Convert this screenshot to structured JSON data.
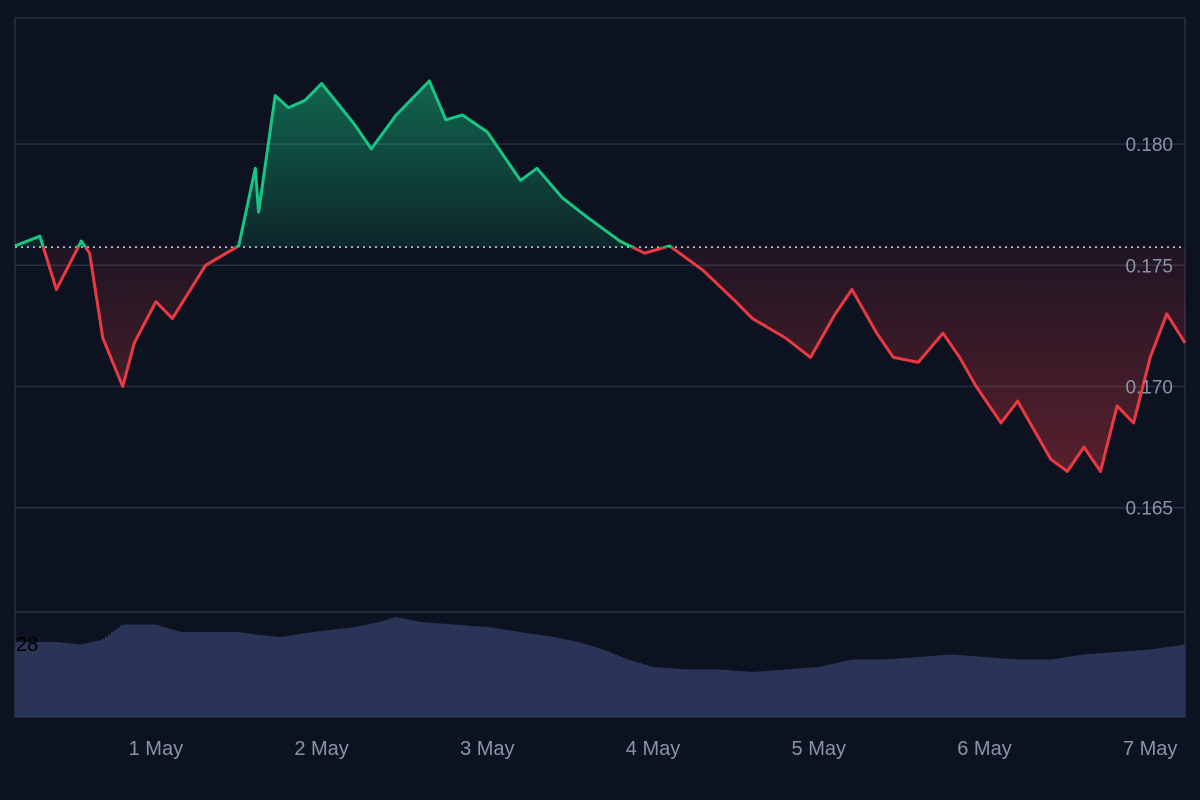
{
  "chart_data": {
    "type": "area",
    "title": "",
    "xlabel": "",
    "ylabel": "",
    "x_ticks": [
      "1 May",
      "2 May",
      "3 May",
      "4 May",
      "5 May",
      "6 May",
      "7 May"
    ],
    "x_range_days": [
      30.15,
      37.21
    ],
    "y_ticks": [
      "0.180",
      "0.175",
      "0.170",
      "0.165"
    ],
    "ylim": [
      0.1607,
      0.1852
    ],
    "baseline": 0.17575,
    "grid": true,
    "legend": "none",
    "colors": {
      "above": "#16c784",
      "below": "#ea3943",
      "baseline": "#cfd4de",
      "volume": "#2a3457",
      "grid": "#263043",
      "background": "#0c1220"
    },
    "price_series": {
      "day": [
        30.15,
        30.3,
        30.4,
        30.55,
        30.6,
        30.68,
        30.8,
        30.87,
        31.0,
        31.1,
        31.3,
        31.5,
        31.6,
        31.62,
        31.72,
        31.8,
        31.9,
        32.0,
        32.2,
        32.3,
        32.45,
        32.65,
        32.75,
        32.85,
        33.0,
        33.2,
        33.3,
        33.45,
        33.6,
        33.7,
        33.8,
        33.95,
        34.1,
        34.3,
        34.5,
        34.6,
        34.8,
        34.95,
        35.1,
        35.2,
        35.35,
        35.45,
        35.6,
        35.75,
        35.85,
        35.95,
        36.1,
        36.2,
        36.4,
        36.5,
        36.6,
        36.7,
        36.8,
        36.9,
        37.0,
        37.1,
        37.21
      ],
      "price": [
        0.1758,
        0.1762,
        0.174,
        0.176,
        0.1755,
        0.172,
        0.17,
        0.1718,
        0.1735,
        0.1728,
        0.175,
        0.1758,
        0.179,
        0.1772,
        0.182,
        0.1815,
        0.1818,
        0.1825,
        0.1808,
        0.1798,
        0.1812,
        0.1826,
        0.181,
        0.1812,
        0.1805,
        0.1785,
        0.179,
        0.1778,
        0.177,
        0.1765,
        0.176,
        0.1755,
        0.1758,
        0.1748,
        0.1735,
        0.1728,
        0.172,
        0.1712,
        0.173,
        0.174,
        0.1722,
        0.1712,
        0.171,
        0.1722,
        0.1712,
        0.17,
        0.1685,
        0.1694,
        0.167,
        0.1665,
        0.1675,
        0.1665,
        0.1692,
        0.1685,
        0.1712,
        0.173,
        0.1718
      ]
    },
    "volume_series": {
      "day": [
        30.15,
        30.4,
        30.55,
        30.68,
        30.8,
        31.0,
        31.15,
        31.3,
        31.5,
        31.6,
        31.75,
        31.95,
        32.2,
        32.35,
        32.45,
        32.6,
        32.8,
        33.0,
        33.2,
        33.4,
        33.55,
        33.7,
        33.85,
        34.0,
        34.2,
        34.4,
        34.6,
        34.8,
        35.0,
        35.2,
        35.4,
        35.6,
        35.8,
        36.0,
        36.2,
        36.4,
        36.6,
        36.8,
        37.0,
        37.21
      ],
      "volume": [
        30,
        30,
        29,
        31,
        37,
        37,
        34,
        34,
        34,
        33,
        32,
        34,
        36,
        38,
        40,
        38,
        37,
        36,
        34,
        32,
        30,
        27,
        23,
        20,
        19,
        19,
        18,
        19,
        20,
        23,
        23,
        24,
        25,
        24,
        23,
        23,
        25,
        26,
        27,
        29
      ]
    },
    "volume_label": "28"
  }
}
